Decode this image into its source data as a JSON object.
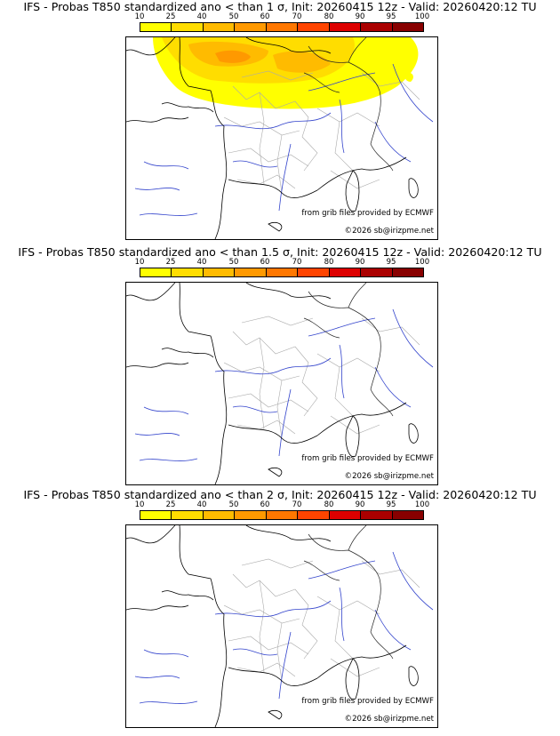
{
  "colorbar": {
    "ticks": [
      "10",
      "25",
      "40",
      "50",
      "60",
      "70",
      "80",
      "90",
      "95",
      "100"
    ],
    "colors": [
      "#ffff00",
      "#ffdd00",
      "#ffbb00",
      "#ff9900",
      "#ff7700",
      "#ff4400",
      "#dd0000",
      "#aa0000",
      "#880000"
    ]
  },
  "panels": [
    {
      "title": "IFS - Probas T850  standardized ano < than 1 σ, Init: 20260415 12z - Valid: 20260420:12 TU"
    },
    {
      "title": "IFS - Probas T850  standardized ano < than 1.5 σ, Init: 20260415 12z - Valid: 20260420:12 TU"
    },
    {
      "title": "IFS - Probas T850  standardized ano < than 2 σ, Init: 20260415 12z - Valid: 20260420:12 TU"
    }
  ],
  "credits": {
    "source": "from grib files provided by ECMWF",
    "copyright": "©2026 sb@irizpme.net"
  }
}
